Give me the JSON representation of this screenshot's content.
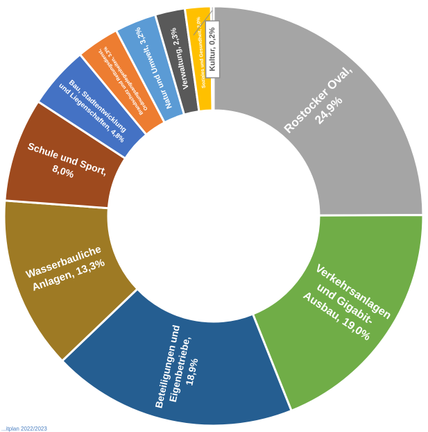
{
  "chart_data": {
    "type": "pie",
    "subtype": "donut",
    "start": "top, clockwise",
    "unit": "%",
    "slices": [
      {
        "label": "Rostocker Oval, 24,9%",
        "lines": [
          "Rostocker Oval,",
          "24,9%"
        ],
        "value": 24.9,
        "color": "#a5a5a5",
        "text_color": "#ffffff"
      },
      {
        "label": "Verkehrsanlagen und Gigabit-Ausbau, 19,0%",
        "lines": [
          "Verkehrsanlagen",
          "und Gigabit-",
          "Ausbau, 19,0%"
        ],
        "value": 19.0,
        "color": "#70ad47",
        "text_color": "#ffffff"
      },
      {
        "label": "Beteiligungen und Eigenbetriebe, 18,9%",
        "lines": [
          "Beteiligungen und",
          "Eigenbetriebe,",
          "18,9%"
        ],
        "value": 18.9,
        "color": "#255e91",
        "text_color": "#ffffff"
      },
      {
        "label": "Wasserbauliche Anlagen, 13,3%",
        "lines": [
          "Wasserbauliche",
          "Anlagen, 13,3%"
        ],
        "value": 13.3,
        "color": "#9e7a24",
        "text_color": "#ffffff"
      },
      {
        "label": "Schule und Sport, 8,0%",
        "lines": [
          "Schule und Sport,",
          "8,0%"
        ],
        "value": 8.0,
        "color": "#9e4a1e",
        "text_color": "#ffffff"
      },
      {
        "label": "Bau, Stadtentwicklung und Liegenschaften, 4,8%",
        "lines": [
          "Bau, Stadtentwicklung",
          "und Liegenschaften, 4,8%"
        ],
        "value": 4.8,
        "color": "#4472c4",
        "text_color": "#ffffff"
      },
      {
        "label": "Brandschutz und Rettungsdienst, Ordnungsangelegenheiten, 3,3%",
        "lines": [
          "Brandschutz und Rettungsdienst,",
          "Ordnungsangelegenheiten, 3,3%"
        ],
        "value": 3.3,
        "color": "#ed7d31",
        "text_color": "#ffffff"
      },
      {
        "label": "Natur und Umwelt, 3,2%",
        "lines": [
          "Natur und Umwelt, 3,2%"
        ],
        "value": 3.2,
        "color": "#5b9bd5",
        "text_color": "#ffffff"
      },
      {
        "label": "Verwaltung, 2,3%",
        "lines": [
          "Verwaltung, 2,3%"
        ],
        "value": 2.3,
        "color": "#595959",
        "text_color": "#ffffff"
      },
      {
        "label": "Soziales und Gesundheit, 2,0%",
        "lines": [
          "Soziales und Gesundheit, 2,0%"
        ],
        "value": 2.0,
        "color": "#ffc000",
        "text_color": "#ffffff"
      },
      {
        "label": "Kultur, 0,2%",
        "lines": [
          "Kultur, 0,2%"
        ],
        "value": 0.2,
        "color": "#8c8c8c",
        "text_color": "#595959"
      }
    ],
    "title": "",
    "legend": "none"
  },
  "footnote": "...itplan 2022/2023"
}
